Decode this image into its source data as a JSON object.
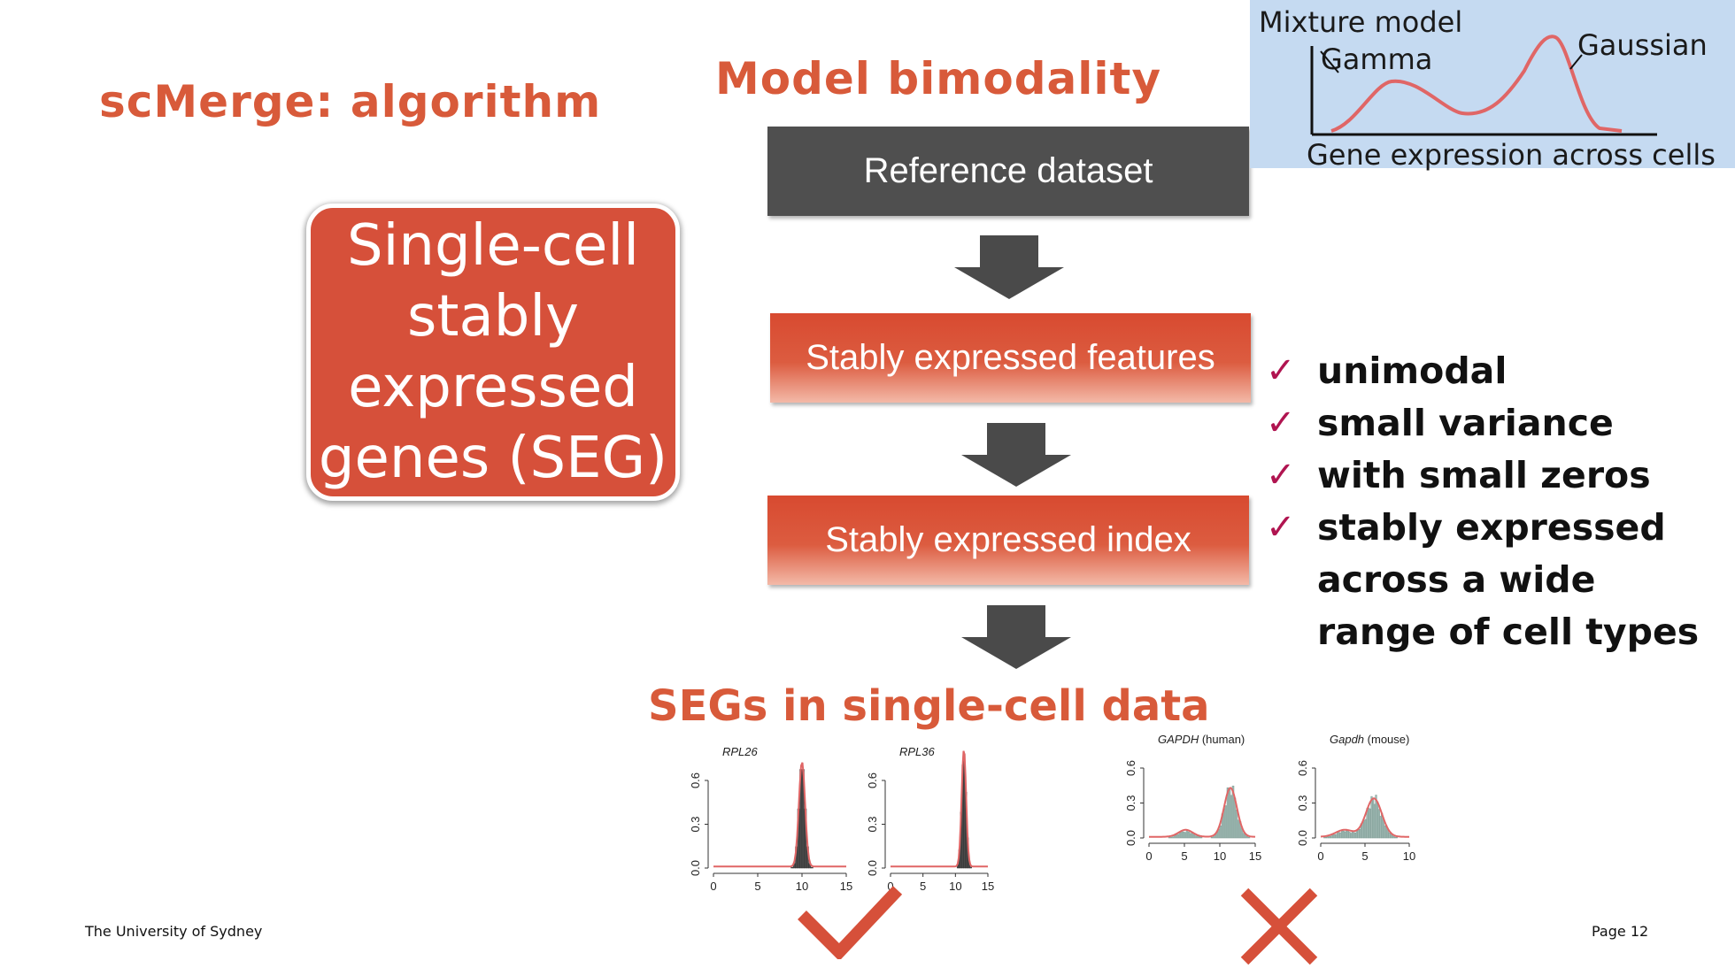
{
  "slide": {
    "title": "scMerge: algorithm",
    "section_heading": "Model bimodality",
    "footer_left": "The University of Sydney",
    "footer_right": "Page 12"
  },
  "seg_box": {
    "text": "Single-cell\nstably\nexpressed\ngenes (SEG)"
  },
  "flow": {
    "reference": "Reference dataset",
    "features": "Stably expressed features",
    "index": "Stably expressed index"
  },
  "mixture_inset": {
    "title": "Mixture model",
    "left_component": "Gamma",
    "right_component": "Gaussian",
    "xlabel": "Gene expression across cells"
  },
  "checklist": [
    "unimodal",
    "small variance",
    "with small zeros",
    "stably expressed across a wide range of cell types"
  ],
  "result_heading": "SEGs in single-cell data",
  "colors": {
    "accent": "#d85a3a",
    "seg_box": "#d6503a",
    "dark_box": "#4f4f4f",
    "check": "#b01450",
    "good_mark": "#d6503a",
    "bad_mark": "#d6503a",
    "inset_bg": "#c5daf1",
    "curve": "#e06666"
  },
  "chart_data": [
    {
      "type": "histogram",
      "gene": "RPL26",
      "verdict": "good",
      "x_ticks": [
        "0",
        "5",
        "10",
        "15"
      ],
      "y_ticks": [
        "0.0",
        "0.3",
        "0.6"
      ],
      "xlim": [
        0,
        15
      ],
      "ylim": [
        0,
        0.6
      ],
      "peak": 10,
      "peak_height": 0.72
    },
    {
      "type": "histogram",
      "gene": "RPL36",
      "verdict": "good",
      "x_ticks": [
        "0",
        "5",
        "10",
        "15"
      ],
      "y_ticks": [
        "0.0",
        "0.3",
        "0.6"
      ],
      "xlim": [
        0,
        15
      ],
      "ylim": [
        0,
        0.6
      ],
      "peak": 11.3,
      "peak_height": 0.8
    },
    {
      "type": "histogram",
      "gene": "GAPDH",
      "gene_suffix": "(human)",
      "verdict": "bad",
      "x_ticks": [
        "0",
        "5",
        "10",
        "15"
      ],
      "y_ticks": [
        "0.0",
        "0.3",
        "0.6"
      ],
      "xlim": [
        0,
        15
      ],
      "ylim": [
        0,
        0.6
      ],
      "peak": 11.5,
      "peak_height": 0.42
    },
    {
      "type": "histogram",
      "gene": "Gapdh",
      "gene_suffix": "(mouse)",
      "verdict": "bad",
      "x_ticks": [
        "0",
        "5",
        "10"
      ],
      "y_ticks": [
        "0.0",
        "0.3",
        "0.6"
      ],
      "xlim": [
        0,
        10
      ],
      "ylim": [
        0,
        0.6
      ],
      "peak": 6,
      "peak_height": 0.33
    }
  ]
}
